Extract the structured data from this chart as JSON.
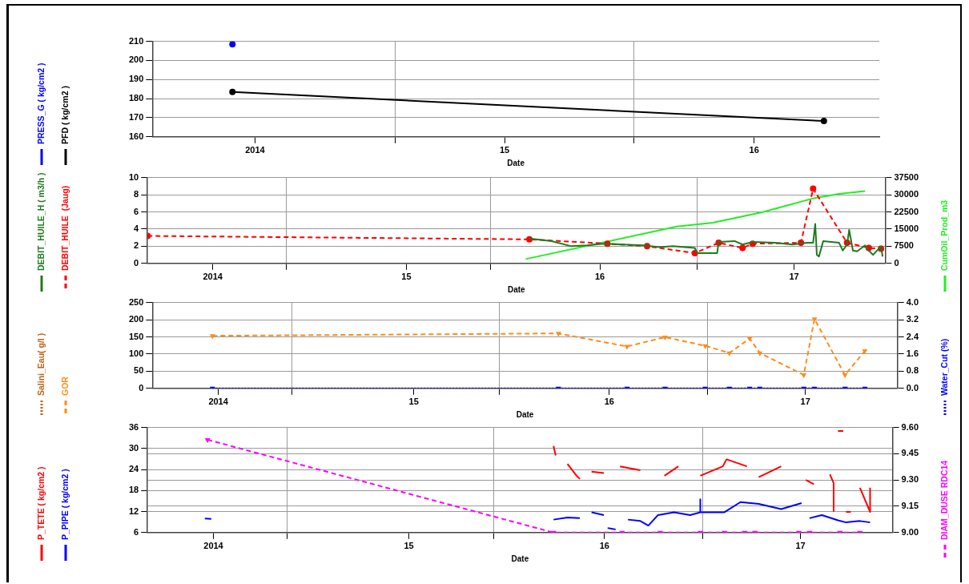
{
  "chart_data": [
    {
      "type": "line",
      "xlabel": "Date",
      "xlim": [
        "2013-08-04",
        "2016-07-02"
      ],
      "xticks": [
        {
          "value": "2014",
          "label": "2014"
        },
        {
          "value": "2014-07-25",
          "label": null
        },
        {
          "value": "2015",
          "label": "15"
        },
        {
          "value": "2015-07-09",
          "label": null
        },
        {
          "value": "2016",
          "label": "16"
        }
      ],
      "ylim": [
        160,
        210
      ],
      "yticks": [
        160,
        170,
        180,
        190,
        200,
        210
      ],
      "grid": true,
      "legend": "left",
      "series": [
        {
          "name": "PRESS_G ( kg/cm2 )",
          "color": "#0000ff",
          "type": "scatter",
          "marker": "circle",
          "x": [
            "2013-11-29"
          ],
          "values": [
            208.5
          ]
        },
        {
          "name": "PFD ( kg/cm2 )",
          "color": "#000000",
          "type": "line",
          "marker": "circle",
          "line_style": "solid",
          "x": [
            "2013-11-29",
            "2016-04-12"
          ],
          "values": [
            183.5,
            168.3
          ]
        }
      ]
    },
    {
      "type": "line",
      "xlabel": "Date",
      "xlim": [
        "2013-08-31",
        "2017-06-22"
      ],
      "xticks": [
        {
          "value": "2014",
          "label": "2014"
        },
        {
          "value": "2014-05-19",
          "label": null
        },
        {
          "value": "2015",
          "label": "15"
        },
        {
          "value": "2015-06-09",
          "label": null
        },
        {
          "value": "2016",
          "label": "16"
        },
        {
          "value": "2016-07-02",
          "label": null
        },
        {
          "value": "2017",
          "label": "17"
        }
      ],
      "ylim": [
        0,
        10
      ],
      "yticks": [
        0,
        2,
        4,
        6,
        8,
        10
      ],
      "y2lim": [
        0,
        37500
      ],
      "y2ticks": [
        0,
        7500,
        15000,
        22500,
        30000,
        37500
      ],
      "grid": true,
      "legend": "left",
      "series": [
        {
          "name": "DEBIT_HUILE_H ( m3/h )",
          "color": "#1e7a1e",
          "type": "line",
          "marker": "none",
          "line_style": "solid",
          "x": [
            "2015-08-21",
            "2015-10-02",
            "2015-11-08",
            "2015-12-08",
            "2016-01-07",
            "2016-02-14",
            "2016-03-23",
            "2016-04-22",
            "2016-05-18",
            "2016-06-09",
            "2016-06-28",
            "2016-07-02",
            "2016-08-01",
            "2016-08-09",
            "2016-08-12",
            "2016-09-11",
            "2016-09-26",
            "2016-10-15",
            "2016-11-26",
            "2016-12-29",
            "2017-01-26",
            "2017-02-06",
            "2017-02-10",
            "2017-02-13",
            "2017-02-17",
            "2017-02-25",
            "2017-03-27",
            "2017-04-03",
            "2017-04-11",
            "2017-04-15",
            "2017-04-22",
            "2017-04-30",
            "2017-05-15",
            "2017-05-22",
            "2017-05-30",
            "2017-06-14",
            "2017-06-17"
          ],
          "values": [
            2.9,
            2.6,
            2.0,
            2.1,
            2.3,
            2.2,
            2.1,
            1.9,
            2.0,
            1.9,
            1.8,
            1.2,
            1.2,
            1.2,
            2.5,
            2.6,
            2.2,
            2.5,
            2.4,
            2.2,
            2.4,
            2.4,
            4.6,
            1.0,
            0.8,
            2.6,
            2.4,
            1.5,
            2.2,
            3.9,
            1.5,
            1.4,
            2.1,
            1.5,
            1.0,
            2.0,
            0.8
          ]
        },
        {
          "name": "DEBIT_HUILE  (Jaug)",
          "color": "#ff0000",
          "type": "line",
          "marker": "circle",
          "line_style": "dashed",
          "x": [
            "2013-08-31",
            "2015-08-21",
            "2016-01-15",
            "2016-03-30",
            "2016-06-28",
            "2016-08-12",
            "2016-09-26",
            "2016-10-15",
            "2017-01-14",
            "2017-02-06",
            "2017-04-11",
            "2017-05-22",
            "2017-06-14"
          ],
          "values": [
            3.2,
            2.8,
            2.3,
            2.0,
            1.2,
            2.4,
            1.8,
            2.3,
            2.4,
            8.7,
            2.4,
            1.8,
            1.7
          ]
        },
        {
          "name": "CumOil_Prod_m3",
          "color": "#22ee22",
          "type": "line",
          "marker": "none",
          "line_style": "solid",
          "axis": "y2",
          "x": [
            "2015-08-14",
            "2016-05-25",
            "2016-08-01",
            "2016-11-03",
            "2017-02-06",
            "2017-03-27",
            "2017-05-15"
          ],
          "values": [
            1900,
            16100,
            17800,
            22400,
            28400,
            30400,
            31600
          ]
        }
      ]
    },
    {
      "type": "line",
      "xlabel": "Date",
      "xlim": [
        "2013-08-31",
        "2017-06-22"
      ],
      "xticks": [
        {
          "value": "2014",
          "label": "2014"
        },
        {
          "value": "2014-05-19",
          "label": null
        },
        {
          "value": "2015",
          "label": "15"
        },
        {
          "value": "2015-06-09",
          "label": null
        },
        {
          "value": "2016",
          "label": "16"
        },
        {
          "value": "2016-07-02",
          "label": null
        },
        {
          "value": "2017",
          "label": "17"
        }
      ],
      "ylim": [
        0,
        250
      ],
      "yticks": [
        0,
        50,
        100,
        150,
        200,
        250
      ],
      "y2lim": [
        0,
        4
      ],
      "y2ticks": [
        {
          "value": 0,
          "label": "0.0"
        },
        {
          "value": 0.8,
          "label": "0.8"
        },
        {
          "value": 1.6,
          "label": "1.6"
        },
        {
          "value": 2.4,
          "label": "2.4"
        },
        {
          "value": 3.2,
          "label": "3.2"
        },
        {
          "value": 4,
          "label": "4.0"
        }
      ],
      "grid": true,
      "legend": "left",
      "series": [
        {
          "name": "Salini_Eau( g/l )",
          "color": "#c06010",
          "type": "line",
          "marker": "triangle",
          "line_style": "dotted"
        },
        {
          "name": "GOR",
          "color": "#ff8c1a",
          "type": "line",
          "marker": "triangle",
          "line_style": "dashed",
          "x": [
            "2013-12-21",
            "2015-09-28",
            "2016-02-03",
            "2016-04-14",
            "2016-06-28",
            "2016-08-12",
            "2016-09-19",
            "2016-10-08",
            "2016-12-29",
            "2017-01-18",
            "2017-03-16",
            "2017-04-22"
          ],
          "values": [
            153,
            160,
            122,
            149,
            124,
            103,
            145,
            103,
            39,
            202,
            39,
            109
          ]
        },
        {
          "name": "Water_Cut (%)",
          "color": "#0000ff",
          "type": "line",
          "marker": "triangle",
          "line_style": "dotted",
          "axis": "y2",
          "x": [
            "2013-12-21",
            "2015-09-28",
            "2016-02-03",
            "2016-04-14",
            "2016-06-28",
            "2016-08-12",
            "2016-09-19",
            "2016-10-08",
            "2016-12-29",
            "2017-01-18",
            "2017-03-16",
            "2017-04-22"
          ],
          "values": [
            0,
            0,
            0,
            0,
            0,
            0,
            0,
            0,
            0,
            0,
            0,
            0
          ]
        }
      ]
    },
    {
      "type": "line",
      "xlabel": "Date",
      "xlim": [
        "2013-08-31",
        "2017-06-22"
      ],
      "xticks": [
        {
          "value": "2014",
          "label": "2014"
        },
        {
          "value": "2014-05-19",
          "label": null
        },
        {
          "value": "2015",
          "label": "15"
        },
        {
          "value": "2015-06-09",
          "label": null
        },
        {
          "value": "2016",
          "label": "16"
        },
        {
          "value": "2016-07-02",
          "label": null
        },
        {
          "value": "2017",
          "label": "17"
        }
      ],
      "ylim": [
        6,
        36
      ],
      "yticks": [
        6,
        12,
        18,
        24,
        30,
        36
      ],
      "y2lim": [
        9,
        9.6
      ],
      "y2ticks": [
        {
          "value": 9,
          "label": "9.00"
        },
        {
          "value": 9.15,
          "label": "9.15"
        },
        {
          "value": 9.3,
          "label": "9.30"
        },
        {
          "value": 9.45,
          "label": "9.45"
        },
        {
          "value": 9.6,
          "label": "9.60"
        }
      ],
      "grid": true,
      "legend": "left",
      "series": [
        {
          "name": "P_TETE ( kg/cm2 )",
          "color": "#ff0000",
          "type": "line",
          "marker": "none",
          "line_style": "solid",
          "x": [
            "2015-09-28",
            "2015-10-02",
            "2015-10-09",
            "2015-10-24",
            "2015-11-08",
            "2015-11-16",
            "2015-11-27",
            "2015-12-08",
            "2015-12-31",
            "2016-01-15",
            "2016-01-30",
            "2016-03-08",
            "2016-03-15",
            "2016-04-22",
            "2016-05-18",
            "2016-06-06",
            "2016-06-28",
            "2016-08-09",
            "2016-08-16",
            "2016-09-23",
            "2016-10-04",
            "2016-10-15",
            "2016-11-26",
            "2016-12-18",
            "2017-01-11",
            "2017-01-26",
            "2017-02-02",
            "2017-02-25",
            "2017-03-04",
            "2017-03-04",
            "2017-03-08",
            "2017-03-12",
            "2017-03-22",
            "2017-03-24",
            "2017-03-27",
            "2017-04-05",
            "2017-04-07",
            "2017-04-22",
            "2017-05-11",
            "2017-05-11"
          ],
          "values": [
            30.7,
            28.0,
            null,
            25.6,
            22.6,
            21.3,
            null,
            23.4,
            23.0,
            null,
            24.9,
            23.8,
            null,
            22.2,
            24.9,
            null,
            22.2,
            24.9,
            26.9,
            24.9,
            null,
            21.8,
            24.9,
            null,
            21.0,
            19.8,
            null,
            22.6,
            20.1,
            12.1,
            null,
            35.0,
            35.0,
            null,
            11.9,
            11.9,
            null,
            18.8,
            11.9,
            18.8
          ]
        },
        {
          "name": "P_PIPE ( kg/cm2 )",
          "color": "#0000ff",
          "type": "line",
          "marker": "none",
          "line_style": "solid",
          "x": [
            "2013-12-16",
            "2013-12-28",
            "2014-01-01",
            "2015-09-28",
            "2015-10-24",
            "2015-11-16",
            "2015-11-27",
            "2015-12-08",
            "2015-12-31",
            "2016-01-04",
            "2016-01-07",
            "2016-01-22",
            "2016-02-03",
            "2016-02-14",
            "2016-03-08",
            "2016-03-23",
            "2016-04-10",
            "2016-05-10",
            "2016-06-09",
            "2016-06-28",
            "2016-06-28",
            "2016-06-28",
            "2016-08-12",
            "2016-09-11",
            "2016-10-15",
            "2016-11-26",
            "2017-01-03",
            "2017-01-11",
            "2017-01-18",
            "2017-02-10",
            "2017-03-12",
            "2017-03-27",
            "2017-04-22",
            "2017-05-11"
          ],
          "values": [
            10.0,
            9.9,
            null,
            9.7,
            10.3,
            10.1,
            null,
            11.8,
            11.0,
            null,
            7.3,
            6.9,
            null,
            9.7,
            9.3,
            8.0,
            11.0,
            11.8,
            11.0,
            11.8,
            15.5,
            11.8,
            11.8,
            14.7,
            14.2,
            12.7,
            14.4,
            null,
            10.1,
            11.0,
            9.5,
            8.9,
            9.3,
            8.9
          ]
        },
        {
          "name": "DIAM_DUSE RDC14",
          "color": "#ff00ff",
          "type": "line",
          "marker": "triangle",
          "line_style": "dashed",
          "axis": "y2",
          "x": [
            "2013-12-21",
            "2015-09-28",
            "2016-02-03",
            "2016-04-14",
            "2016-06-28",
            "2016-08-12",
            "2016-09-19",
            "2016-10-08",
            "2016-12-29",
            "2017-01-18",
            "2017-03-16",
            "2017-04-22"
          ],
          "values": [
            9.53,
            9,
            9,
            9,
            9,
            9,
            9,
            9,
            9,
            9,
            9,
            9
          ]
        }
      ]
    }
  ]
}
